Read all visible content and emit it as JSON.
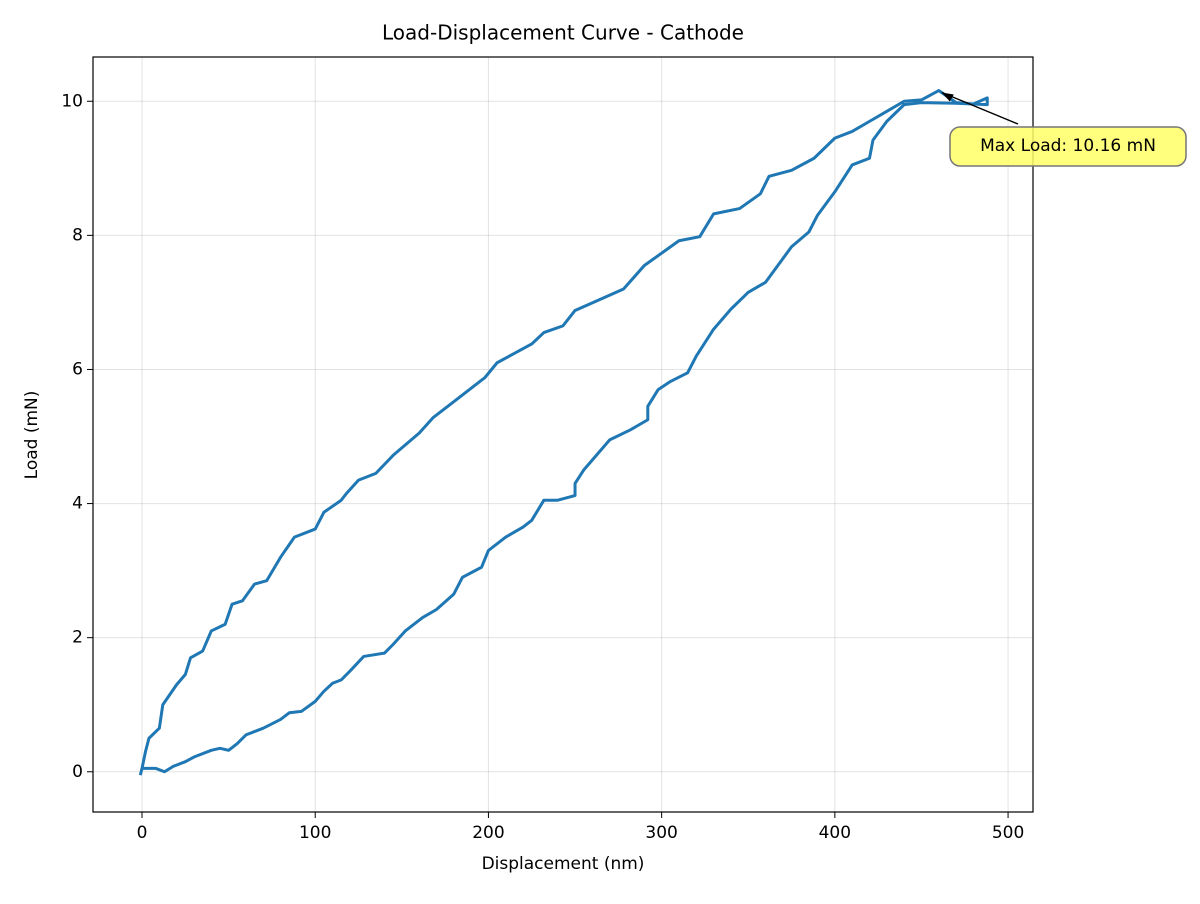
{
  "chart_data": {
    "type": "line",
    "title": "Load-Displacement Curve - Cathode",
    "x_label": "Displacement (nm)",
    "y_label": "Load (mN)",
    "x": [
      0,
      2,
      4,
      10,
      12,
      20,
      25,
      28,
      35,
      40,
      48,
      52,
      58,
      65,
      72,
      80,
      88,
      100,
      105,
      115,
      118,
      125,
      135,
      145,
      160,
      168,
      180,
      198,
      205,
      225,
      232,
      243,
      250,
      265,
      278,
      290,
      310,
      322,
      330,
      345,
      357,
      362,
      375,
      388,
      400,
      410,
      420,
      432,
      440,
      450,
      460,
      470,
      480,
      488,
      488,
      470,
      450,
      440,
      430,
      422,
      420,
      410,
      400,
      390,
      385,
      375,
      360,
      350,
      340,
      330,
      320,
      315,
      305,
      298,
      292,
      292,
      282,
      270,
      255,
      250,
      250,
      240,
      232,
      225,
      220,
      210,
      200,
      196,
      185,
      180,
      170,
      162,
      152,
      145,
      140,
      128,
      120,
      115,
      110,
      105,
      100,
      92,
      85,
      80,
      70,
      60,
      55,
      50,
      45,
      40,
      30,
      25,
      18,
      13,
      8,
      0,
      -1
    ],
    "values": [
      0.05,
      0.3,
      0.5,
      0.65,
      1.0,
      1.3,
      1.45,
      1.7,
      1.8,
      2.1,
      2.2,
      2.5,
      2.55,
      2.8,
      2.85,
      3.2,
      3.5,
      3.62,
      3.87,
      4.05,
      4.15,
      4.35,
      4.45,
      4.72,
      5.05,
      5.28,
      5.52,
      5.88,
      6.1,
      6.38,
      6.55,
      6.65,
      6.88,
      7.05,
      7.2,
      7.55,
      7.92,
      7.98,
      8.32,
      8.4,
      8.62,
      8.88,
      8.97,
      9.15,
      9.45,
      9.55,
      9.7,
      9.88,
      10.0,
      10.02,
      10.16,
      9.98,
      9.96,
      10.05,
      9.95,
      9.97,
      9.98,
      9.95,
      9.7,
      9.42,
      9.15,
      9.05,
      8.65,
      8.3,
      8.05,
      7.83,
      7.3,
      7.15,
      6.9,
      6.6,
      6.2,
      5.95,
      5.82,
      5.7,
      5.45,
      5.25,
      5.1,
      4.95,
      4.5,
      4.3,
      4.12,
      4.05,
      4.05,
      3.75,
      3.65,
      3.5,
      3.3,
      3.05,
      2.9,
      2.65,
      2.42,
      2.3,
      2.1,
      1.9,
      1.77,
      1.72,
      1.5,
      1.37,
      1.32,
      1.2,
      1.05,
      0.9,
      0.88,
      0.78,
      0.65,
      0.55,
      0.42,
      0.32,
      0.35,
      0.32,
      0.22,
      0.15,
      0.08,
      0.0,
      0.05,
      0.05,
      -0.05
    ],
    "color": "#1f77b4",
    "xlim": [
      -28.3,
      514.4
    ],
    "ylim": [
      -0.6,
      10.66
    ],
    "xticks": [
      0,
      100,
      200,
      300,
      400,
      500
    ],
    "yticks": [
      0,
      2,
      4,
      6,
      8,
      10
    ],
    "grid": true,
    "annotation": {
      "text": "Max Load: 10.16 mN",
      "xy": [
        460,
        10.16
      ]
    }
  }
}
